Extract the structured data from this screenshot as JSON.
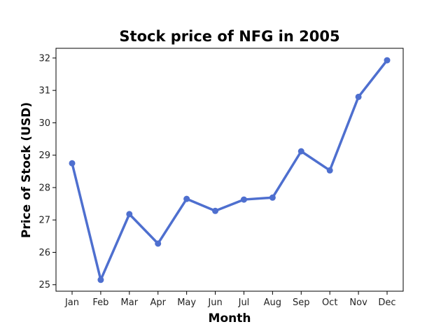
{
  "chart_data": {
    "type": "line",
    "title": "Stock price of NFG in 2005",
    "xlabel": "Month",
    "ylabel": "Price of Stock (USD)",
    "categories": [
      "Jan",
      "Feb",
      "Mar",
      "Apr",
      "May",
      "Jun",
      "Jul",
      "Aug",
      "Sep",
      "Oct",
      "Nov",
      "Dec"
    ],
    "series": [
      {
        "values": [
          28.75,
          25.15,
          27.18,
          26.27,
          27.65,
          27.28,
          27.63,
          27.69,
          29.12,
          28.53,
          30.8,
          31.93
        ],
        "color": "#4e6fcf"
      }
    ],
    "yticks": [
      25,
      26,
      27,
      28,
      29,
      30,
      31,
      32
    ],
    "ylim": [
      24.8,
      32.3
    ],
    "grid": false,
    "legend": "none"
  }
}
